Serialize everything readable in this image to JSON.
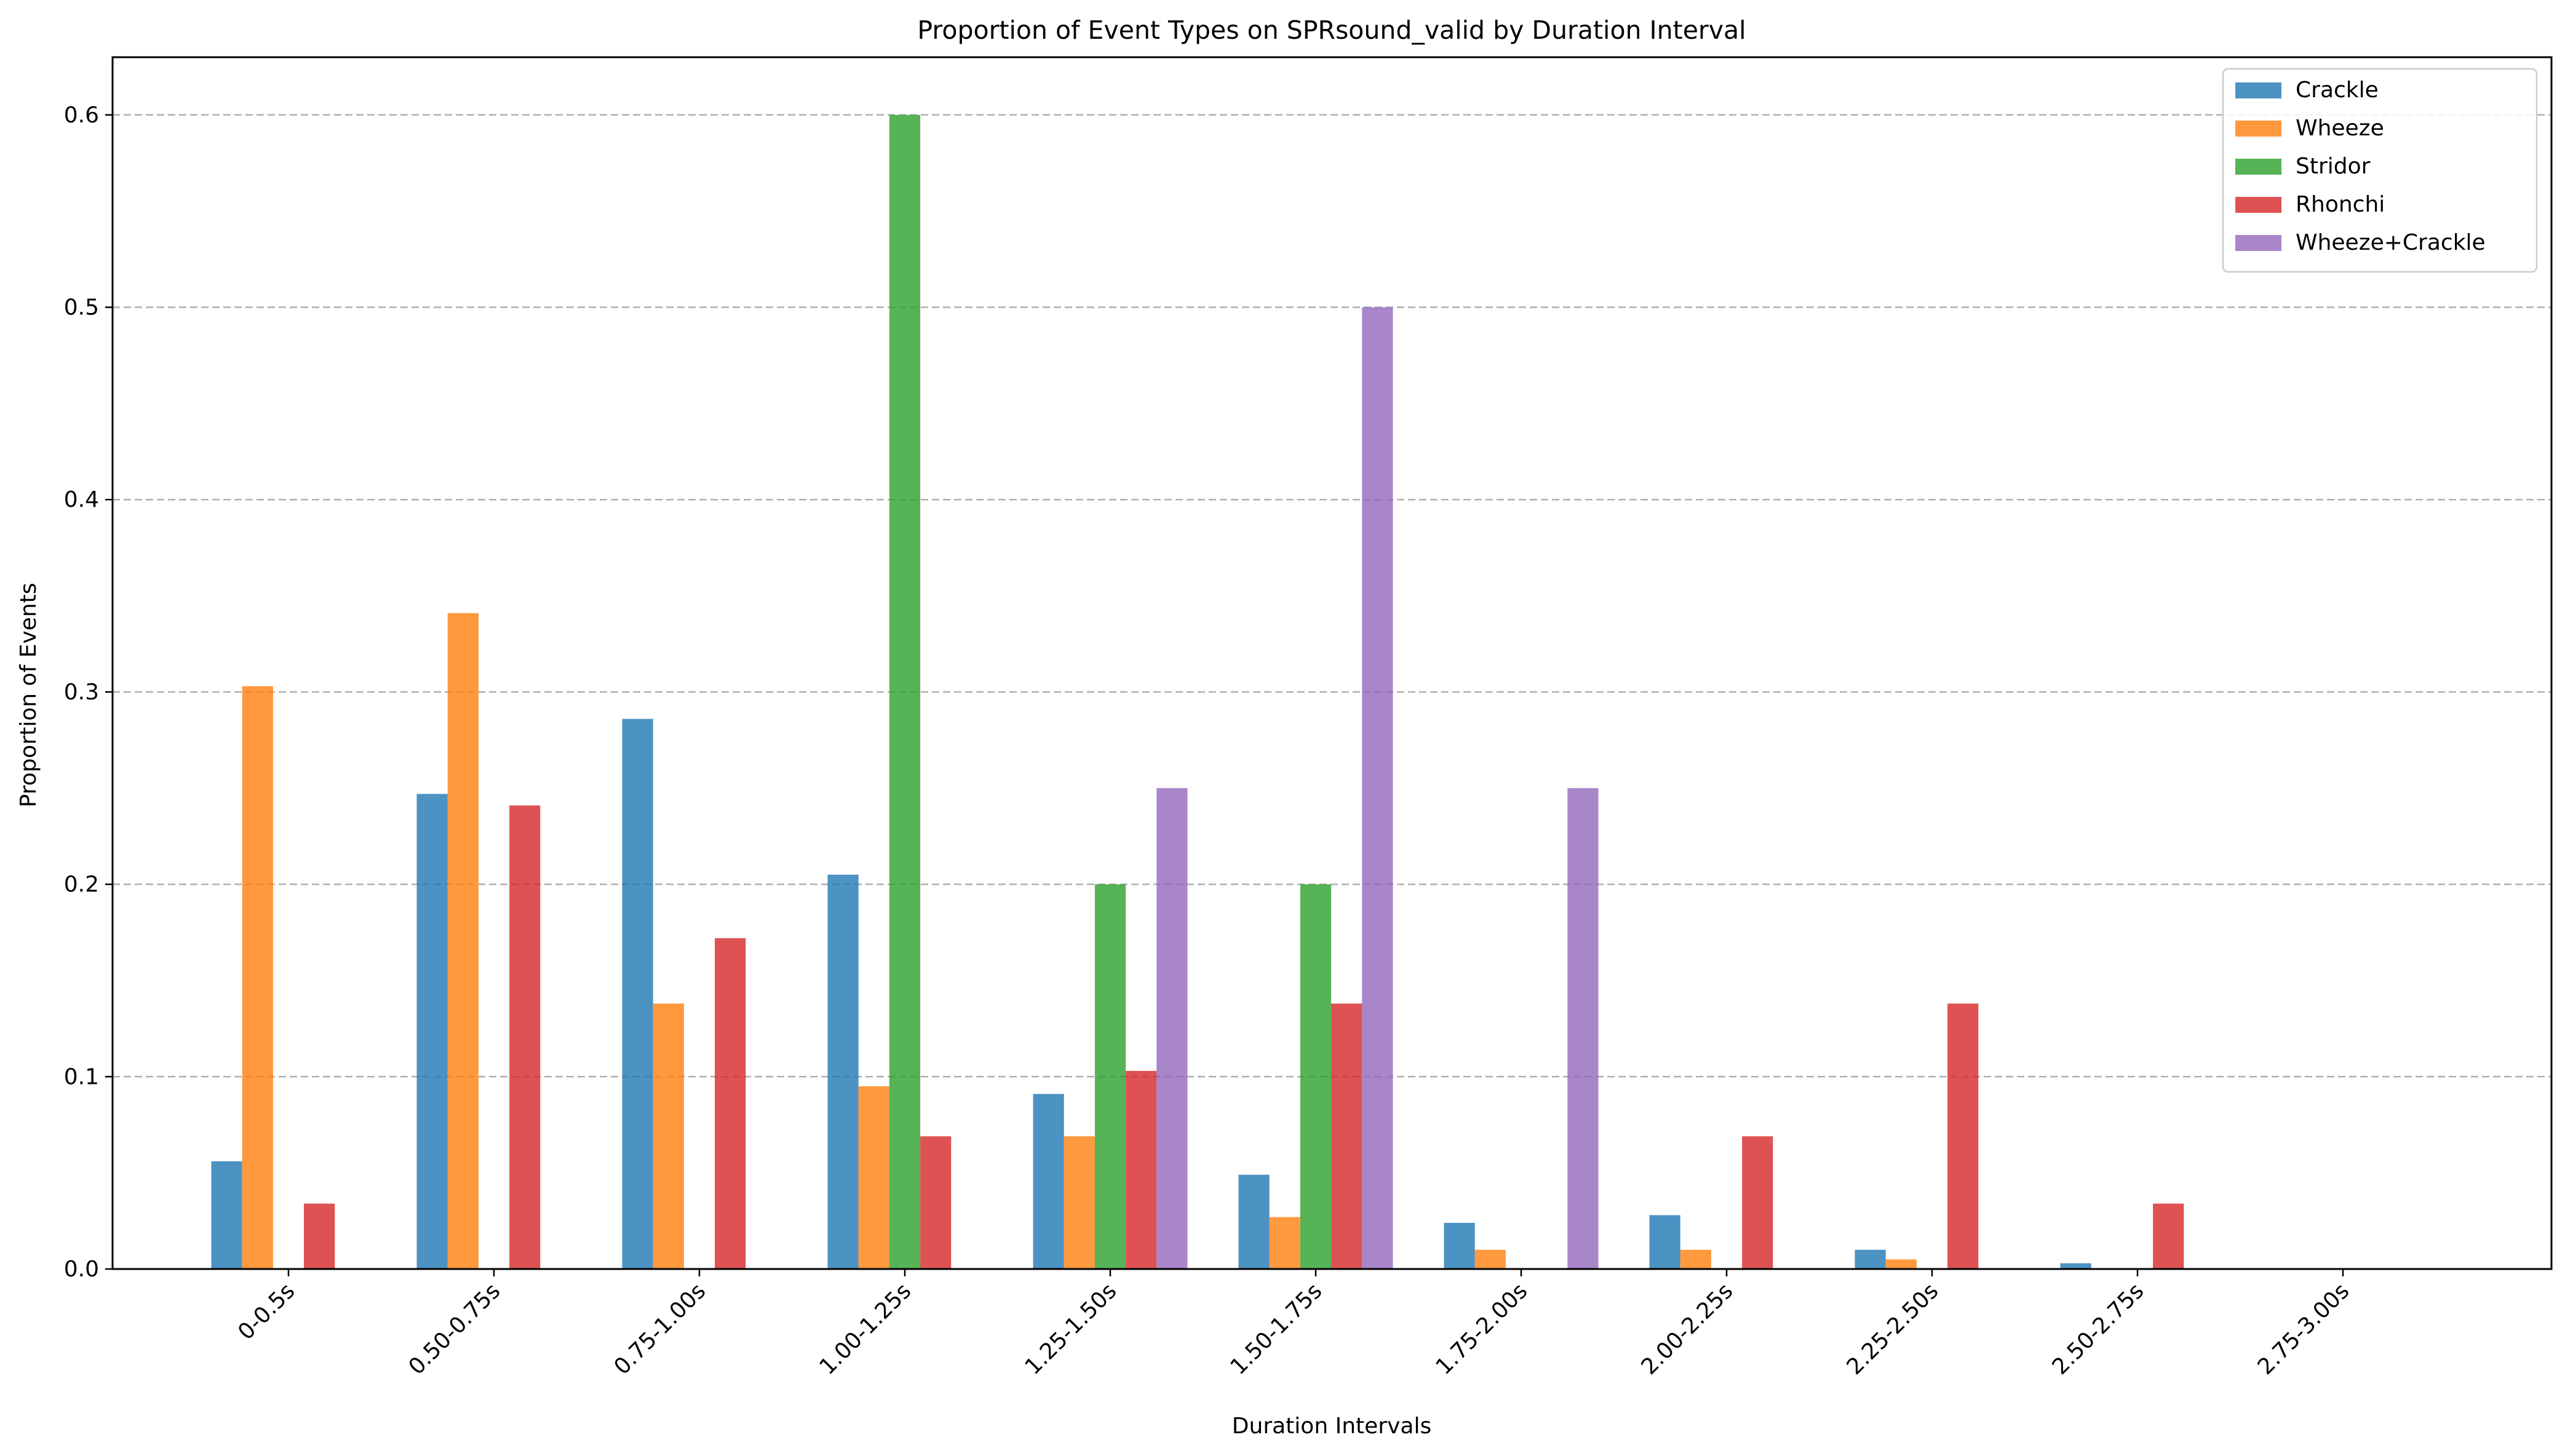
{
  "chart_data": {
    "type": "bar",
    "title": "Proportion of Event Types on SPRsound_valid by Duration Interval",
    "xlabel": "Duration Intervals",
    "ylabel": "Proportion of Events",
    "categories": [
      "0-0.5s",
      "0.50-0.75s",
      "0.75-1.00s",
      "1.00-1.25s",
      "1.25-1.50s",
      "1.50-1.75s",
      "1.75-2.00s",
      "2.00-2.25s",
      "2.25-2.50s",
      "2.50-2.75s",
      "2.75-3.00s"
    ],
    "yticks": [
      0.0,
      0.1,
      0.2,
      0.3,
      0.4,
      0.5,
      0.6
    ],
    "ytick_labels": [
      "0.0",
      "0.1",
      "0.2",
      "0.3",
      "0.4",
      "0.5",
      "0.6"
    ],
    "ylim": [
      0,
      0.63
    ],
    "grid": "horizontal dashed",
    "legend_position": "top-right",
    "series": [
      {
        "name": "Crackle",
        "color": "#1f77b4",
        "values": [
          0.056,
          0.247,
          0.286,
          0.205,
          0.091,
          0.049,
          0.024,
          0.028,
          0.01,
          0.003,
          0.0
        ]
      },
      {
        "name": "Wheeze",
        "color": "#ff7f0e",
        "values": [
          0.303,
          0.341,
          0.138,
          0.095,
          0.069,
          0.027,
          0.01,
          0.01,
          0.005,
          0.0,
          0.0
        ]
      },
      {
        "name": "Stridor",
        "color": "#2ca02c",
        "values": [
          0.0,
          0.0,
          0.0,
          0.6,
          0.2,
          0.2,
          0.0,
          0.0,
          0.0,
          0.0,
          0.0
        ]
      },
      {
        "name": "Rhonchi",
        "color": "#d62728",
        "values": [
          0.034,
          0.241,
          0.172,
          0.069,
          0.103,
          0.138,
          0.0,
          0.069,
          0.138,
          0.034,
          0.0
        ]
      },
      {
        "name": "Wheeze+Crackle",
        "color": "#9467bd",
        "values": [
          0.0,
          0.0,
          0.0,
          0.0,
          0.25,
          0.5,
          0.25,
          0.0,
          0.0,
          0.0,
          0.0
        ]
      }
    ]
  }
}
